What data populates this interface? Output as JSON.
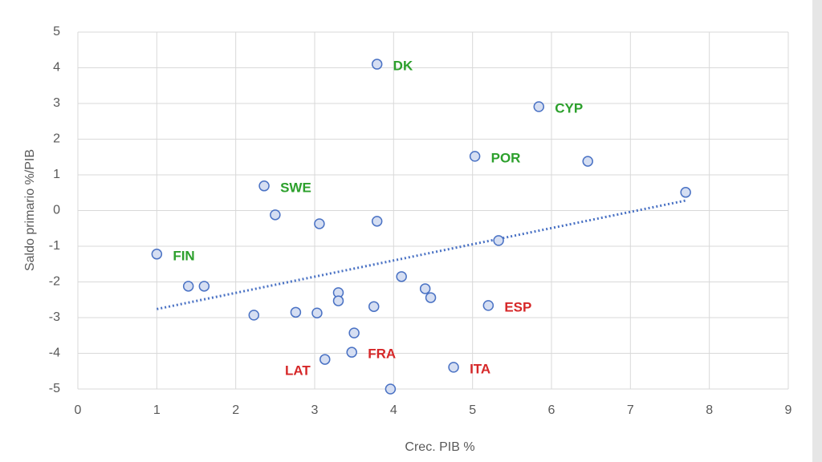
{
  "chart_data": {
    "type": "scatter",
    "x_label": "Crec. PIB %",
    "y_label": "Saldo primario  %/PIB",
    "xlim": [
      0,
      9
    ],
    "xticks": [
      0,
      1,
      2,
      3,
      4,
      5,
      6,
      7,
      8,
      9
    ],
    "ylim": [
      -5,
      5
    ],
    "yticks": [
      -5,
      -4,
      -3,
      -2,
      -1,
      0,
      1,
      2,
      3,
      4,
      5
    ],
    "grid": true,
    "trendline": true,
    "color": "#4a72c4",
    "x": [
      1.0,
      1.4,
      1.6,
      2.23,
      2.36,
      2.5,
      2.76,
      3.03,
      3.06,
      3.13,
      3.3,
      3.3,
      3.47,
      3.5,
      3.75,
      3.79,
      3.79,
      3.96,
      4.1,
      4.4,
      4.47,
      4.76,
      5.03,
      5.2,
      5.33,
      5.84,
      6.46,
      7.7
    ],
    "values": [
      -1.22,
      -2.12,
      -2.12,
      -2.93,
      0.69,
      -0.12,
      -2.85,
      -2.87,
      -0.37,
      -4.17,
      -2.3,
      -2.53,
      -3.97,
      -3.43,
      -2.69,
      4.1,
      -0.3,
      -5.0,
      -1.85,
      -2.19,
      -2.44,
      -4.39,
      1.52,
      -2.66,
      -0.84,
      2.91,
      1.38,
      0.51
    ],
    "labels": [
      "FIN",
      null,
      null,
      null,
      "SWE",
      null,
      null,
      null,
      null,
      "LAT",
      null,
      null,
      "FRA",
      null,
      null,
      "DK",
      null,
      null,
      null,
      null,
      null,
      "ITA",
      "POR",
      "ESP",
      null,
      "CYP",
      null,
      null
    ],
    "label_colors": [
      "#2ca02c",
      null,
      null,
      null,
      "#2ca02c",
      null,
      null,
      null,
      null,
      "#d62728",
      null,
      null,
      "#d62728",
      null,
      null,
      "#2ca02c",
      null,
      null,
      null,
      null,
      null,
      "#d62728",
      "#2ca02c",
      "#d62728",
      null,
      "#2ca02c",
      null,
      null
    ]
  }
}
